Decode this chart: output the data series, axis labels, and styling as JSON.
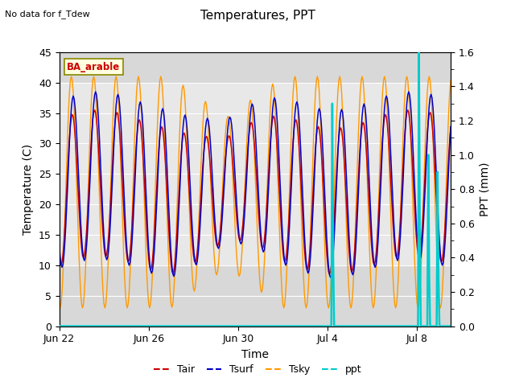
{
  "title": "Temperatures, PPT",
  "subtitle": "No data for f_Tdew",
  "xlabel": "Time",
  "ylabel_left": "Temperature (C)",
  "ylabel_right": "PPT (mm)",
  "annotation": "BA_arable",
  "ylim_left": [
    0,
    45
  ],
  "ylim_right": [
    0.0,
    1.6
  ],
  "yticks_left": [
    0,
    5,
    10,
    15,
    20,
    25,
    30,
    35,
    40,
    45
  ],
  "yticks_right": [
    0.0,
    0.2,
    0.4,
    0.6,
    0.8,
    1.0,
    1.2,
    1.4,
    1.6
  ],
  "xtick_labels": [
    "Jun 22",
    "Jun 26",
    "Jun 30",
    "Jul 4",
    "Jul 8"
  ],
  "xtick_offsets": [
    0,
    96,
    192,
    288,
    384
  ],
  "xlim_hours": 420,
  "colors": {
    "Tair": "#cc0000",
    "Tsurf": "#0000cc",
    "Tsky": "#ff9900",
    "ppt": "#00cccc"
  },
  "gray_band": [
    10,
    40
  ],
  "plot_bg": "#d8d8d8",
  "band_color": "#e8e8e8",
  "grid_color": "#ffffff",
  "ppt_spikes": [
    {
      "hour": 293,
      "val": 1.3
    },
    {
      "hour": 386,
      "val": 1.6
    },
    {
      "hour": 396,
      "val": 1.0
    },
    {
      "hour": 406,
      "val": 0.9
    }
  ]
}
